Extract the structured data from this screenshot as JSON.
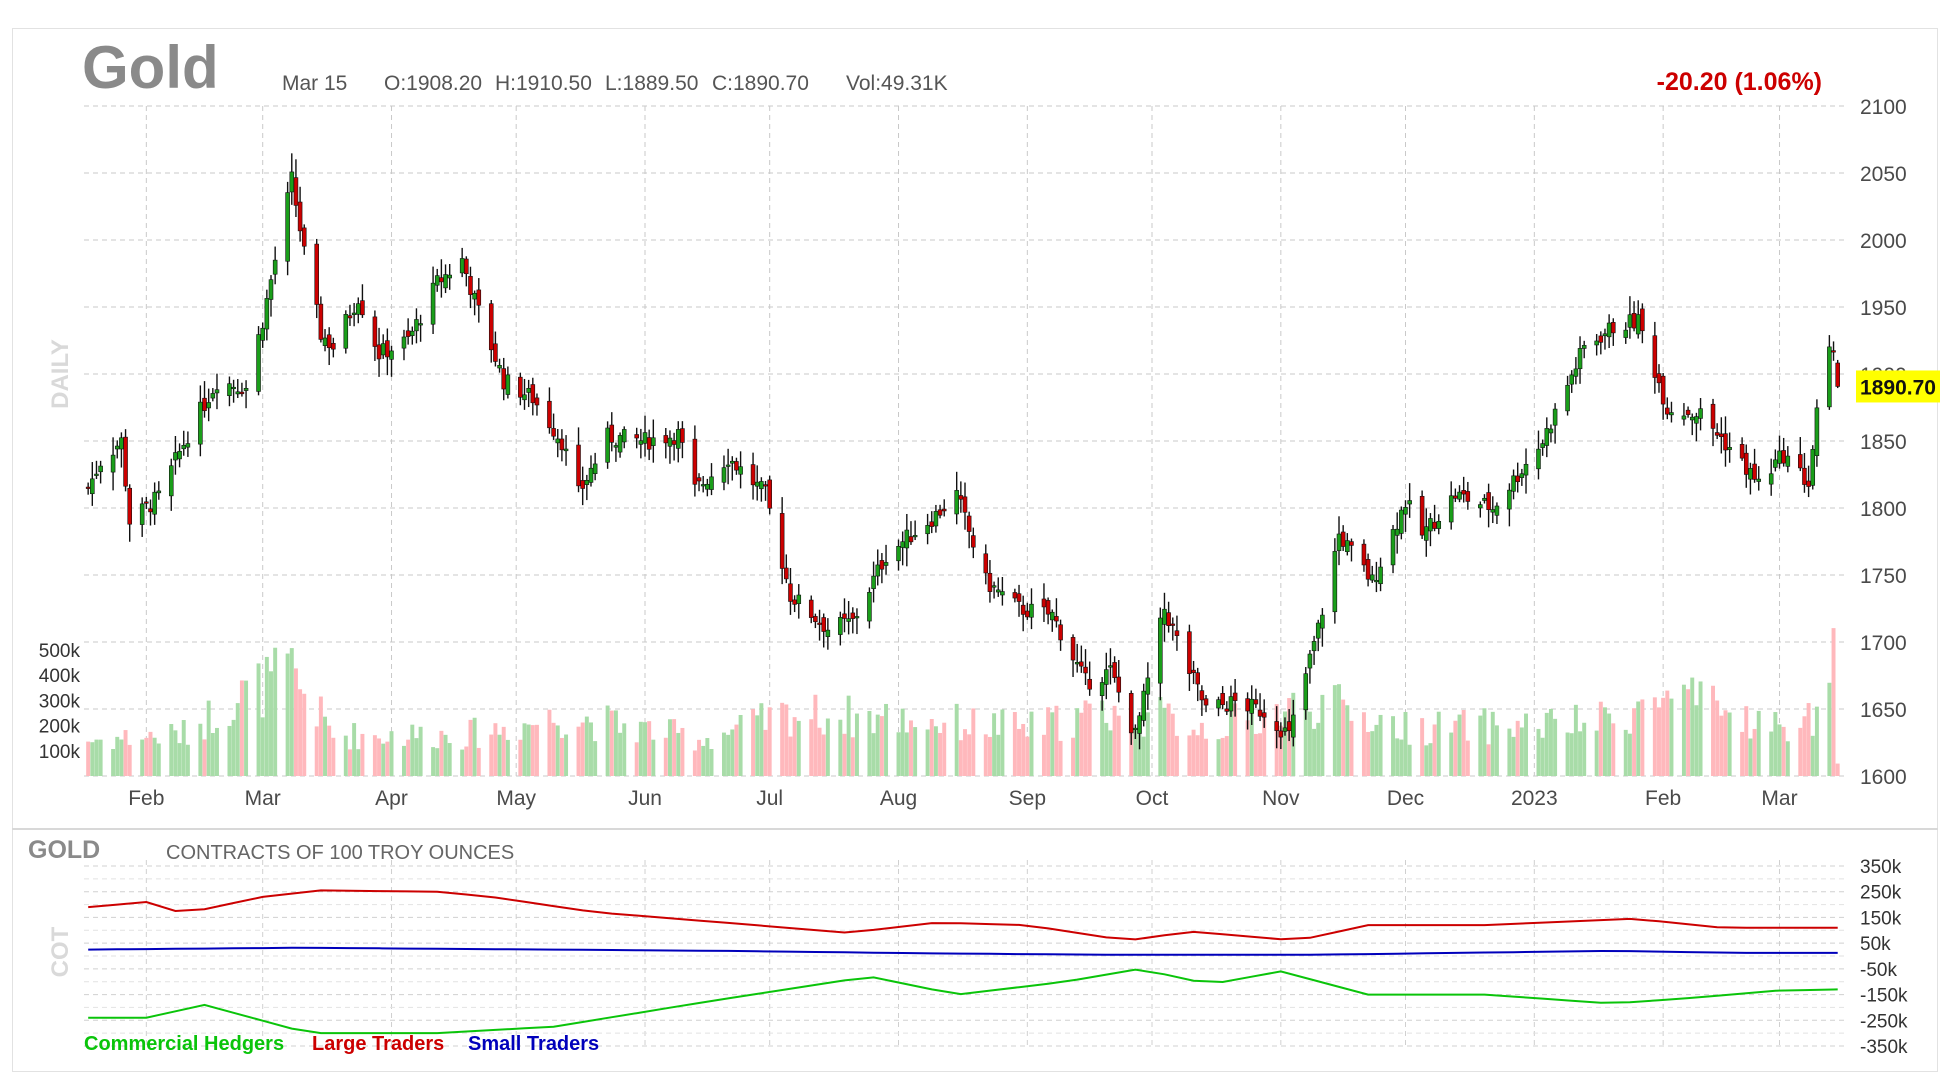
{
  "header": {
    "title": "Gold",
    "date": "Mar 15",
    "open": "O:1908.20",
    "high": "H:1910.50",
    "low": "L:1889.50",
    "close": "C:1890.70",
    "volume": "Vol:49.31K",
    "change": "-20.20 (1.06%)",
    "last_price": "1890.70"
  },
  "main_panel": {
    "side_label": "DAILY"
  },
  "cot_panel": {
    "title": "GOLD",
    "subtitle": "CONTRACTS OF 100 TROY OUNCES",
    "side_label": "COT",
    "legend": [
      {
        "label": "Commercial Hedgers",
        "color": "#0ac40a"
      },
      {
        "label": "Large Traders",
        "color": "#cc0000"
      },
      {
        "label": "Small Traders",
        "color": "#0000bb"
      }
    ]
  },
  "colors": {
    "up": "#1a9e1a",
    "down": "#cc0000",
    "vol_up": "#a8dca8",
    "vol_down": "#ffb8bc",
    "last_price_bg": "#ffff00",
    "change": "#cc0000"
  },
  "chart_data": [
    {
      "type": "candlestick",
      "title": "Gold",
      "price_axis": {
        "ylim": [
          1600,
          2100
        ],
        "ticks": [
          "2100",
          "2050",
          "2000",
          "1950",
          "1900",
          "1850",
          "1800",
          "1750",
          "1700",
          "1650",
          "1600"
        ]
      },
      "volume_axis": {
        "ylim": [
          0,
          600000
        ],
        "ticks": [
          "500k",
          "400k",
          "300k",
          "200k",
          "100k"
        ]
      },
      "x_ticks": [
        "Feb",
        "Mar",
        "Apr",
        "May",
        "Jun",
        "Jul",
        "Aug",
        "Sep",
        "Oct",
        "Nov",
        "Dec",
        "2023",
        "Feb",
        "Mar"
      ],
      "grid": true,
      "close_path": [
        [
          "2022-01-18",
          1815
        ],
        [
          "2022-01-21",
          1835
        ],
        [
          "2022-01-26",
          1850
        ],
        [
          "2022-01-28",
          1790
        ],
        [
          "2022-02-04",
          1808
        ],
        [
          "2022-02-11",
          1855
        ],
        [
          "2022-02-18",
          1895
        ],
        [
          "2022-02-25",
          1890
        ],
        [
          "2022-03-01",
          1940
        ],
        [
          "2022-03-08",
          2045
        ],
        [
          "2022-03-11",
          1990
        ],
        [
          "2022-03-15",
          1930
        ],
        [
          "2022-03-18",
          1920
        ],
        [
          "2022-03-24",
          1958
        ],
        [
          "2022-03-29",
          1915
        ],
        [
          "2022-04-05",
          1925
        ],
        [
          "2022-04-12",
          1968
        ],
        [
          "2022-04-18",
          1985
        ],
        [
          "2022-04-21",
          1955
        ],
        [
          "2022-04-28",
          1895
        ],
        [
          "2022-05-05",
          1882
        ],
        [
          "2022-05-12",
          1850
        ],
        [
          "2022-05-16",
          1810
        ],
        [
          "2022-05-23",
          1853
        ],
        [
          "2022-06-01",
          1850
        ],
        [
          "2022-06-09",
          1855
        ],
        [
          "2022-06-13",
          1813
        ],
        [
          "2022-06-21",
          1838
        ],
        [
          "2022-06-30",
          1810
        ],
        [
          "2022-07-06",
          1735
        ],
        [
          "2022-07-15",
          1710
        ],
        [
          "2022-07-21",
          1715
        ],
        [
          "2022-07-29",
          1765
        ],
        [
          "2022-08-10",
          1795
        ],
        [
          "2022-08-15",
          1810
        ],
        [
          "2022-08-22",
          1745
        ],
        [
          "2022-08-30",
          1725
        ],
        [
          "2022-09-07",
          1720
        ],
        [
          "2022-09-15",
          1670
        ],
        [
          "2022-09-21",
          1678
        ],
        [
          "2022-09-27",
          1630
        ],
        [
          "2022-10-04",
          1725
        ],
        [
          "2022-10-10",
          1678
        ],
        [
          "2022-10-14",
          1650
        ],
        [
          "2022-10-21",
          1655
        ],
        [
          "2022-10-28",
          1648
        ],
        [
          "2022-11-03",
          1630
        ],
        [
          "2022-11-10",
          1710
        ],
        [
          "2022-11-15",
          1780
        ],
        [
          "2022-11-23",
          1745
        ],
        [
          "2022-12-01",
          1805
        ],
        [
          "2022-12-05",
          1780
        ],
        [
          "2022-12-13",
          1810
        ],
        [
          "2022-12-22",
          1800
        ],
        [
          "2023-01-03",
          1850
        ],
        [
          "2023-01-13",
          1920
        ],
        [
          "2023-01-20",
          1935
        ],
        [
          "2023-01-26",
          1940
        ],
        [
          "2023-02-02",
          1875
        ],
        [
          "2023-02-10",
          1870
        ],
        [
          "2023-02-17",
          1845
        ],
        [
          "2023-02-24",
          1818
        ],
        [
          "2023-03-02",
          1840
        ],
        [
          "2023-03-08",
          1818
        ],
        [
          "2023-03-10",
          1870
        ],
        [
          "2023-03-13",
          1915
        ],
        [
          "2023-03-14",
          1910
        ],
        [
          "2023-03-15",
          1890.7
        ]
      ],
      "volume_profile": [
        [
          "2022-01-18",
          150000
        ],
        [
          "2022-02-10",
          175000
        ],
        [
          "2022-02-22",
          320000
        ],
        [
          "2022-03-08",
          430000
        ],
        [
          "2022-03-18",
          170000
        ],
        [
          "2022-04-20",
          175000
        ],
        [
          "2022-05-13",
          250000
        ],
        [
          "2022-06-15",
          155000
        ],
        [
          "2022-07-06",
          260000
        ],
        [
          "2022-08-02",
          240000
        ],
        [
          "2022-09-01",
          200000
        ],
        [
          "2022-09-23",
          280000
        ],
        [
          "2022-10-15",
          200000
        ],
        [
          "2022-11-10",
          310000
        ],
        [
          "2022-12-01",
          200000
        ],
        [
          "2023-01-15",
          220000
        ],
        [
          "2023-02-03",
          330000
        ],
        [
          "2023-03-01",
          200000
        ],
        [
          "2023-03-10",
          250000
        ],
        [
          "2023-03-14",
          480000
        ],
        [
          "2023-03-15",
          80000
        ]
      ]
    },
    {
      "type": "line",
      "title": "GOLD",
      "subtitle": "CONTRACTS OF 100 TROY OUNCES",
      "ylim": [
        -350000,
        350000
      ],
      "y_ticks": [
        "350k",
        "250k",
        "150k",
        "50k",
        "-50k",
        "-150k",
        "-250k",
        "-350k"
      ],
      "series": [
        {
          "name": "Large Traders",
          "color": "#cc0000",
          "values": [
            [
              "2022-01-18",
              190000
            ],
            [
              "2022-02-01",
              210000
            ],
            [
              "2022-02-10",
              165000
            ],
            [
              "2022-03-01",
              230000
            ],
            [
              "2022-03-15",
              255000
            ],
            [
              "2022-04-12",
              250000
            ],
            [
              "2022-04-25",
              230000
            ],
            [
              "2022-05-20",
              170000
            ],
            [
              "2022-06-20",
              130000
            ],
            [
              "2022-07-20",
              90000
            ],
            [
              "2022-08-10",
              130000
            ],
            [
              "2022-09-01",
              120000
            ],
            [
              "2022-09-25",
              60000
            ],
            [
              "2022-10-10",
              95000
            ],
            [
              "2022-11-05",
              60000
            ],
            [
              "2022-11-22",
              120000
            ],
            [
              "2022-12-20",
              120000
            ],
            [
              "2023-01-25",
              145000
            ],
            [
              "2023-02-15",
              110000
            ],
            [
              "2023-03-15",
              110000
            ]
          ]
        },
        {
          "name": "Small Traders",
          "color": "#0000bb",
          "values": [
            [
              "2022-01-18",
              25000
            ],
            [
              "2022-03-10",
              32000
            ],
            [
              "2022-06-20",
              20000
            ],
            [
              "2022-08-10",
              10000
            ],
            [
              "2022-09-20",
              5000
            ],
            [
              "2022-11-10",
              5000
            ],
            [
              "2023-01-20",
              20000
            ],
            [
              "2023-02-20",
              12000
            ],
            [
              "2023-03-15",
              12000
            ]
          ]
        },
        {
          "name": "Commercial Hedgers",
          "color": "#0ac40a",
          "values": [
            [
              "2022-01-18",
              -240000
            ],
            [
              "2022-02-01",
              -240000
            ],
            [
              "2022-02-15",
              -190000
            ],
            [
              "2022-03-12",
              -300000
            ],
            [
              "2022-04-12",
              -300000
            ],
            [
              "2022-05-10",
              -275000
            ],
            [
              "2022-06-15",
              -180000
            ],
            [
              "2022-07-25",
              -80000
            ],
            [
              "2022-08-15",
              -150000
            ],
            [
              "2022-09-10",
              -100000
            ],
            [
              "2022-09-28",
              -50000
            ],
            [
              "2022-10-15",
              -110000
            ],
            [
              "2022-11-01",
              -60000
            ],
            [
              "2022-11-22",
              -150000
            ],
            [
              "2022-12-20",
              -150000
            ],
            [
              "2023-01-20",
              -185000
            ],
            [
              "2023-02-10",
              -160000
            ],
            [
              "2023-02-28",
              -135000
            ],
            [
              "2023-03-15",
              -130000
            ]
          ]
        }
      ]
    }
  ]
}
